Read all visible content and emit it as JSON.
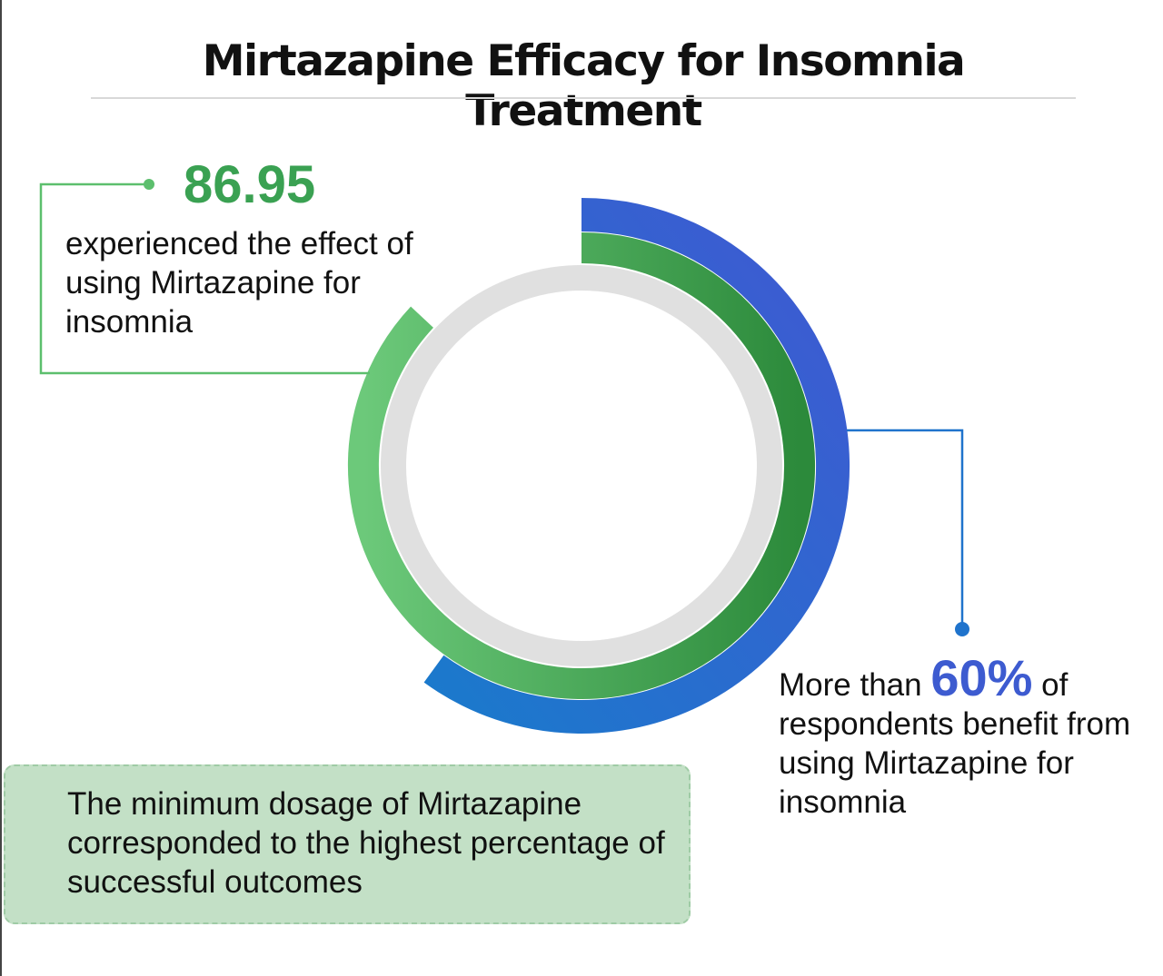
{
  "title": "Mirtazapine Efficacy for Insomnia Treatment",
  "chart_data": {
    "type": "radial-bar",
    "title": "Mirtazapine Efficacy for Insomnia Treatment",
    "series": [
      {
        "name": "experienced the effect of using Mirtazapine for insomnia",
        "value": 86.95,
        "unit": "%",
        "color": "#3aa152"
      },
      {
        "name": "respondents benefit from using Mirtazapine for insomnia",
        "value": 60,
        "unit": "%",
        "color": "#3d5bd0"
      }
    ],
    "max": 100
  },
  "left_callout": {
    "value": "86.95",
    "text": "experienced the effect of using Mirtazapine for insomnia"
  },
  "right_callout": {
    "prefix": "More than",
    "value": "60%",
    "suffix": "of",
    "text": "respondents benefit from using Mirtazapine for insomnia"
  },
  "note": "The minimum dosage of Mirtazapine corresponded to the highest percentage of successful outcomes",
  "colors": {
    "green": "#3aa152",
    "blue": "#3d5bd0",
    "track": "#e0e0e0",
    "note_bg": "#c3e0c6"
  }
}
